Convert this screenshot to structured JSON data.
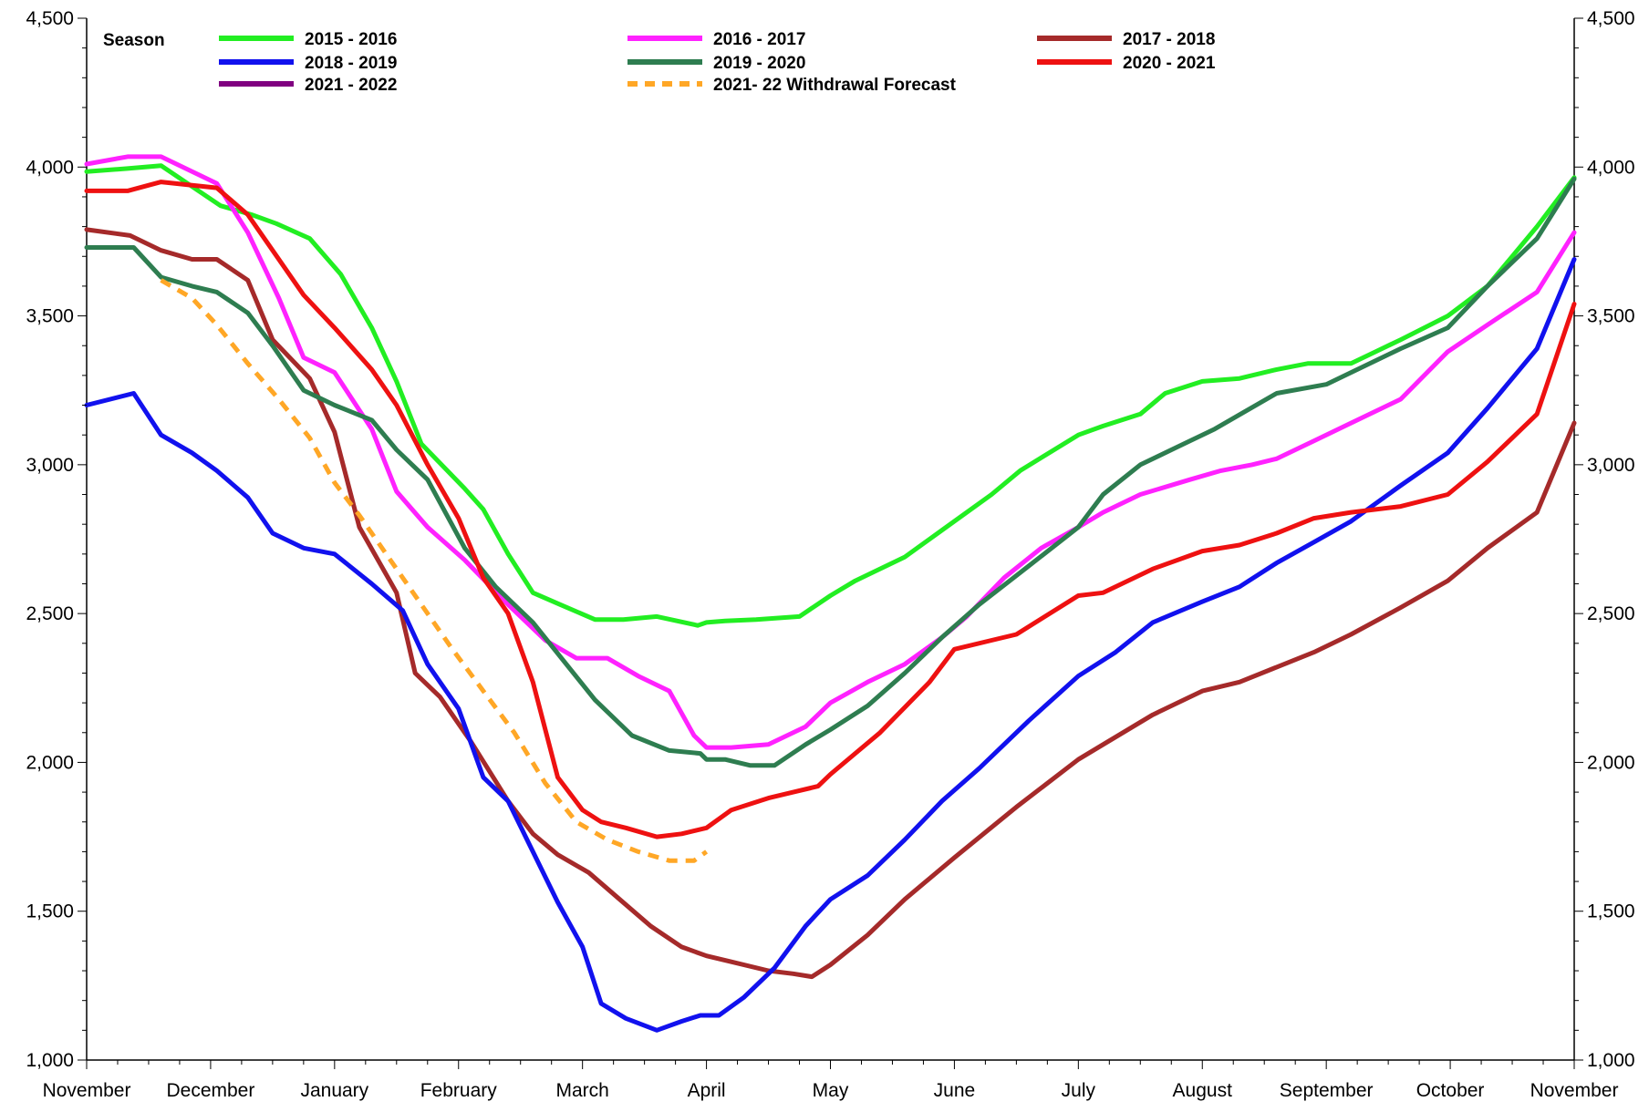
{
  "chart_data": {
    "type": "line",
    "title": "",
    "xlabel": "",
    "ylabel": "",
    "ylim": [
      1000,
      4500
    ],
    "y_ticks": [
      1000,
      1500,
      2000,
      2500,
      3000,
      3500,
      4000,
      4500
    ],
    "y_tick_labels": [
      "1,000",
      "1,500",
      "2,000",
      "2,500",
      "3,000",
      "3,500",
      "4,000",
      "4,500"
    ],
    "x_range": [
      0,
      12
    ],
    "x_ticks": [
      0,
      1,
      2,
      3,
      4,
      5,
      6,
      7,
      8,
      9,
      10,
      11,
      12
    ],
    "x_tick_labels": [
      "November",
      "December",
      "January",
      "February",
      "March",
      "April",
      "May",
      "June",
      "July",
      "August",
      "September",
      "October",
      "November"
    ],
    "x_unit": "months since start of November",
    "grid": false,
    "dual_y_axis": true,
    "legend": {
      "title": "Season",
      "position": "top"
    },
    "series": [
      {
        "name": "2015 - 2016",
        "color": "#22ee22",
        "dash": false,
        "x": [
          0,
          0.33,
          0.6,
          1.08,
          1.33,
          1.53,
          1.8,
          2.05,
          2.3,
          2.5,
          2.7,
          3.05,
          3.2,
          3.4,
          3.6,
          3.82,
          4.1,
          4.33,
          4.6,
          4.93,
          5.0,
          5.15,
          5.4,
          5.75,
          6.0,
          6.2,
          6.6,
          6.9,
          7.3,
          7.53,
          8.0,
          8.2,
          8.5,
          8.7,
          9.0,
          9.3,
          9.6,
          9.85,
          10.2,
          10.6,
          10.98,
          11.3,
          11.7,
          12.0
        ],
        "values": [
          3985,
          3995,
          4005,
          3870,
          3840,
          3810,
          3760,
          3640,
          3460,
          3280,
          3070,
          2920,
          2850,
          2700,
          2570,
          2530,
          2480,
          2480,
          2490,
          2460,
          2470,
          2475,
          2480,
          2490,
          2560,
          2610,
          2690,
          2780,
          2900,
          2980,
          3100,
          3130,
          3170,
          3240,
          3280,
          3290,
          3320,
          3340,
          3340,
          3420,
          3500,
          3600,
          3800,
          3965
        ]
      },
      {
        "name": "2016 - 2017",
        "color": "#ff22ff",
        "dash": false,
        "x": [
          0,
          0.33,
          0.6,
          1.05,
          1.3,
          1.55,
          1.75,
          2.0,
          2.3,
          2.5,
          2.75,
          3.05,
          3.4,
          3.7,
          3.95,
          4.2,
          4.45,
          4.7,
          4.9,
          5.0,
          5.2,
          5.5,
          5.8,
          6.0,
          6.3,
          6.6,
          6.9,
          7.1,
          7.4,
          7.7,
          8.0,
          8.2,
          8.5,
          8.9,
          9.15,
          9.4,
          9.6,
          9.9,
          10.2,
          10.6,
          10.98,
          11.3,
          11.7,
          12.0
        ],
        "values": [
          4010,
          4035,
          4035,
          3945,
          3780,
          3560,
          3360,
          3310,
          3120,
          2910,
          2790,
          2680,
          2530,
          2410,
          2350,
          2350,
          2290,
          2240,
          2090,
          2050,
          2050,
          2060,
          2120,
          2200,
          2270,
          2330,
          2420,
          2490,
          2620,
          2720,
          2790,
          2840,
          2900,
          2950,
          2980,
          3000,
          3020,
          3080,
          3140,
          3220,
          3380,
          3470,
          3580,
          3780
        ]
      },
      {
        "name": "2017 - 2018",
        "color": "#a52a2a",
        "dash": false,
        "x": [
          0,
          0.35,
          0.6,
          0.85,
          1.05,
          1.3,
          1.5,
          1.8,
          2.0,
          2.2,
          2.5,
          2.65,
          2.85,
          3.1,
          3.4,
          3.6,
          3.8,
          4.05,
          4.3,
          4.55,
          4.8,
          5.0,
          5.2,
          5.5,
          5.7,
          5.85,
          6.0,
          6.3,
          6.6,
          7.0,
          7.5,
          8.0,
          8.2,
          8.6,
          9.0,
          9.3,
          9.6,
          9.9,
          10.2,
          10.6,
          10.98,
          11.3,
          11.7,
          12.0
        ],
        "values": [
          3790,
          3770,
          3720,
          3690,
          3690,
          3620,
          3420,
          3290,
          3110,
          2790,
          2570,
          2300,
          2220,
          2070,
          1870,
          1760,
          1690,
          1630,
          1540,
          1450,
          1380,
          1350,
          1330,
          1300,
          1290,
          1280,
          1320,
          1420,
          1540,
          1680,
          1850,
          2010,
          2060,
          2160,
          2240,
          2270,
          2320,
          2370,
          2430,
          2520,
          2610,
          2720,
          2840,
          3140
        ]
      },
      {
        "name": "2018 - 2019",
        "color": "#1111ee",
        "dash": false,
        "x": [
          0,
          0.38,
          0.6,
          0.85,
          1.05,
          1.3,
          1.5,
          1.75,
          2.0,
          2.3,
          2.55,
          2.75,
          3.0,
          3.2,
          3.4,
          3.6,
          3.8,
          4.0,
          4.15,
          4.35,
          4.6,
          4.8,
          4.95,
          5.1,
          5.3,
          5.55,
          5.8,
          6.0,
          6.3,
          6.6,
          6.9,
          7.2,
          7.6,
          8.0,
          8.3,
          8.6,
          9.0,
          9.3,
          9.6,
          9.9,
          10.2,
          10.6,
          10.98,
          11.3,
          11.7,
          12.0
        ],
        "values": [
          3200,
          3240,
          3100,
          3040,
          2980,
          2890,
          2770,
          2720,
          2700,
          2600,
          2510,
          2330,
          2180,
          1950,
          1870,
          1700,
          1530,
          1380,
          1190,
          1140,
          1100,
          1130,
          1150,
          1150,
          1210,
          1310,
          1450,
          1540,
          1620,
          1740,
          1870,
          1980,
          2140,
          2290,
          2370,
          2470,
          2540,
          2590,
          2670,
          2740,
          2810,
          2930,
          3040,
          3190,
          3390,
          3690
        ]
      },
      {
        "name": "2019 - 2020",
        "color": "#2e7d50",
        "dash": false,
        "x": [
          0,
          0.38,
          0.6,
          0.85,
          1.05,
          1.3,
          1.5,
          1.75,
          2.0,
          2.3,
          2.5,
          2.75,
          3.05,
          3.3,
          3.6,
          3.85,
          4.1,
          4.4,
          4.7,
          4.95,
          5.0,
          5.15,
          5.35,
          5.55,
          5.8,
          6.0,
          6.3,
          6.6,
          6.9,
          7.2,
          7.6,
          8.0,
          8.2,
          8.5,
          8.8,
          9.1,
          9.35,
          9.6,
          10.0,
          10.3,
          10.6,
          10.98,
          11.3,
          11.7,
          12.0
        ],
        "values": [
          3730,
          3730,
          3630,
          3600,
          3580,
          3510,
          3400,
          3250,
          3200,
          3150,
          3050,
          2950,
          2720,
          2590,
          2470,
          2340,
          2210,
          2090,
          2040,
          2030,
          2010,
          2010,
          1990,
          1990,
          2060,
          2110,
          2190,
          2300,
          2420,
          2530,
          2660,
          2790,
          2900,
          3000,
          3060,
          3120,
          3180,
          3240,
          3270,
          3330,
          3390,
          3460,
          3600,
          3760,
          3960
        ]
      },
      {
        "name": "2020 - 2021",
        "color": "#ee1111",
        "dash": false,
        "x": [
          0,
          0.33,
          0.6,
          1.05,
          1.3,
          1.5,
          1.75,
          2.0,
          2.3,
          2.5,
          2.75,
          3.0,
          3.2,
          3.4,
          3.6,
          3.8,
          4.0,
          4.15,
          4.35,
          4.6,
          4.8,
          5.0,
          5.2,
          5.5,
          5.7,
          5.9,
          6.0,
          6.2,
          6.4,
          6.8,
          7.0,
          7.3,
          7.5,
          8.0,
          8.2,
          8.6,
          9.0,
          9.3,
          9.6,
          9.9,
          10.2,
          10.6,
          10.98,
          11.3,
          11.7,
          12.0
        ],
        "values": [
          3920,
          3920,
          3950,
          3930,
          3840,
          3720,
          3570,
          3460,
          3320,
          3200,
          3000,
          2820,
          2620,
          2500,
          2270,
          1950,
          1840,
          1800,
          1780,
          1750,
          1760,
          1780,
          1840,
          1880,
          1900,
          1920,
          1960,
          2030,
          2100,
          2270,
          2380,
          2410,
          2430,
          2560,
          2570,
          2650,
          2710,
          2730,
          2770,
          2820,
          2840,
          2860,
          2900,
          3010,
          3170,
          3540
        ]
      },
      {
        "name": "2021 - 2022",
        "color": "#800080",
        "dash": false,
        "x": [],
        "values": []
      },
      {
        "name": "2021- 22 Withdrawal Forecast",
        "color": "#ffa726",
        "dash": true,
        "x": [
          0.6,
          0.85,
          1.05,
          1.3,
          1.55,
          1.8,
          2.0,
          2.2,
          2.45,
          2.7,
          2.95,
          3.2,
          3.45,
          3.7,
          3.95,
          4.2,
          4.45,
          4.7,
          4.9,
          5.0
        ],
        "values": [
          3620,
          3560,
          3470,
          3340,
          3220,
          3090,
          2940,
          2830,
          2680,
          2530,
          2380,
          2240,
          2100,
          1930,
          1800,
          1740,
          1700,
          1670,
          1670,
          1700
        ]
      }
    ]
  }
}
